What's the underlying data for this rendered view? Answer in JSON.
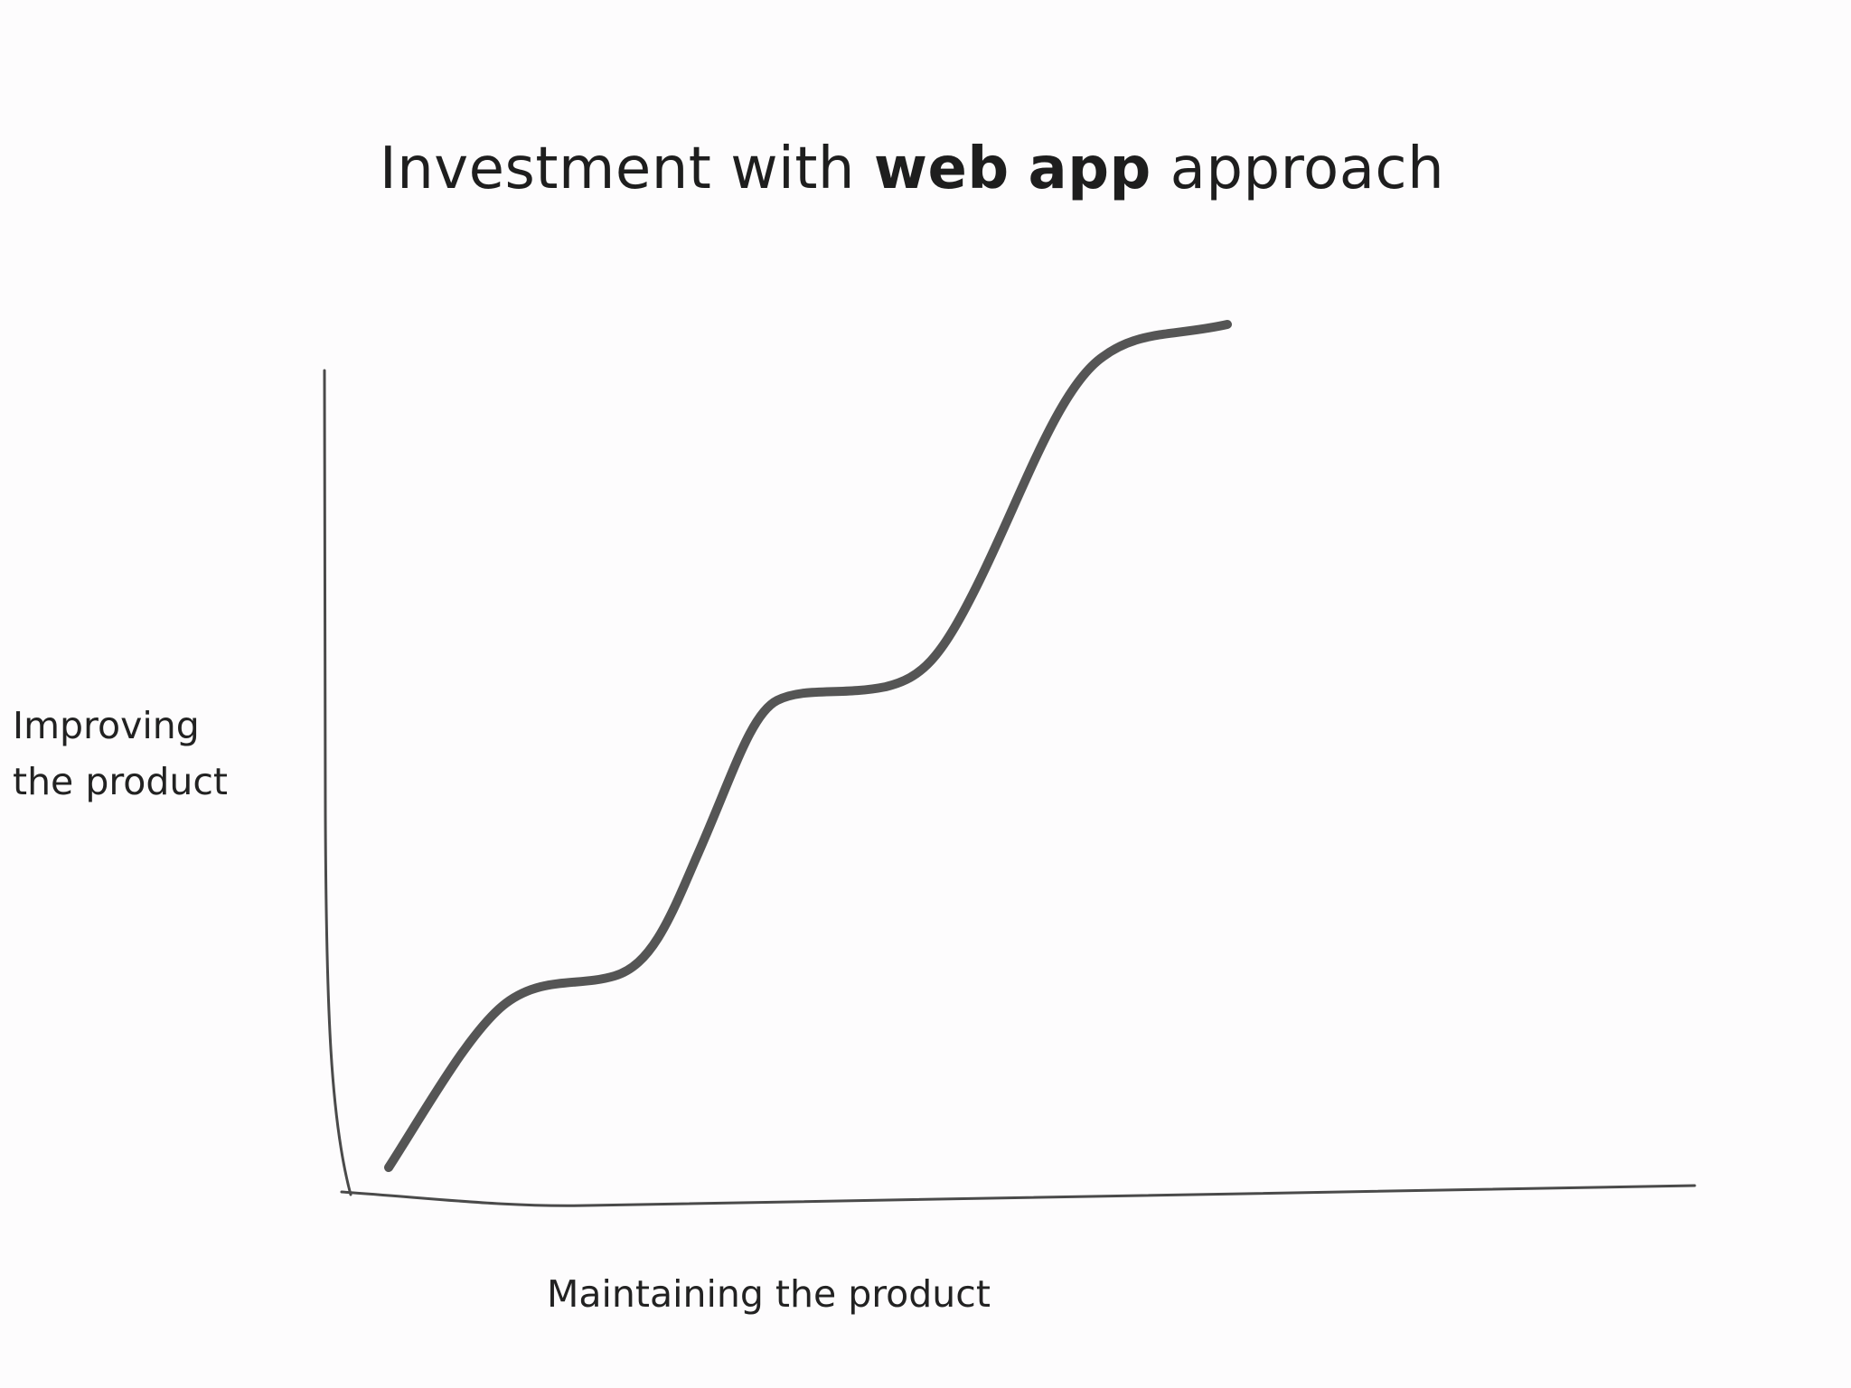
{
  "title": {
    "part1": "Investment with ",
    "bold1": "web",
    "bold2": "app",
    "part2": "approach"
  },
  "y_axis_label": {
    "line1": "Improving",
    "line2": "the product"
  },
  "x_axis_label": "Maintaining the product",
  "colors": {
    "background": "#fdfcfd",
    "curve": "#555555",
    "axes": "#4a4a4a",
    "text": "#222222"
  },
  "curve_shape": "staircase-s-curve rising with three plateaus"
}
